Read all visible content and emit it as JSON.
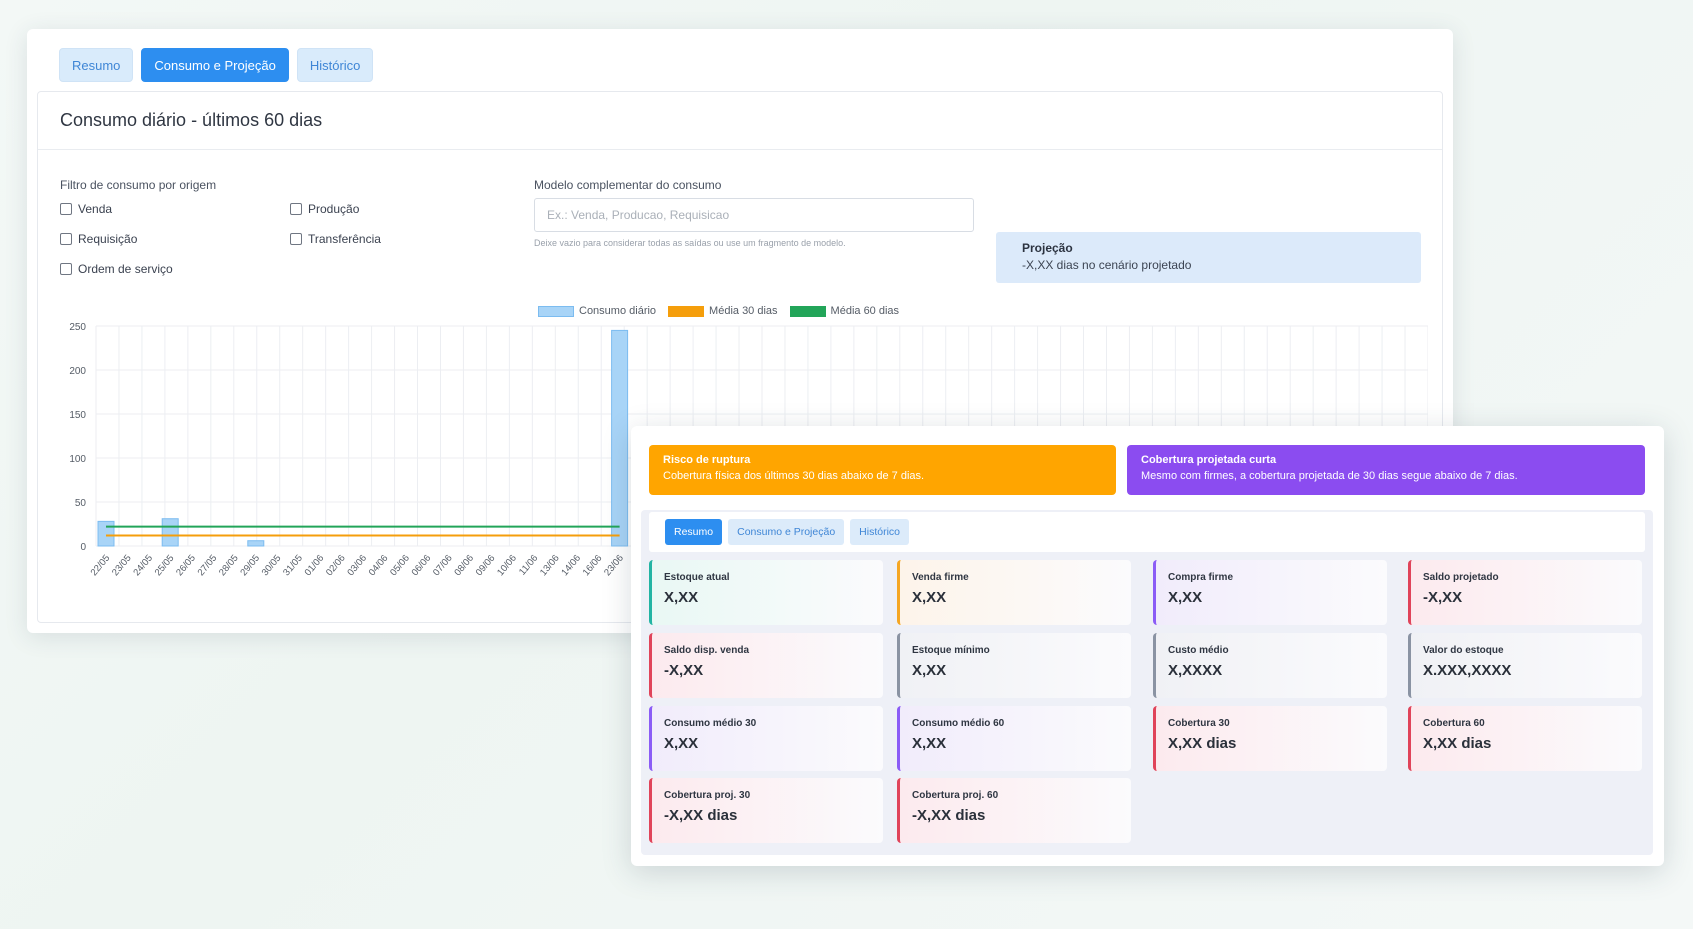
{
  "back": {
    "tabs": [
      "Resumo",
      "Consumo e Projeção",
      "Histórico"
    ],
    "active_tab": 1,
    "panel_title": "Consumo diário - últimos 60 dias",
    "filter_label": "Filtro de consumo por origem",
    "filters": [
      "Venda",
      "Produção",
      "Requisição",
      "Transferência",
      "Ordem de serviço"
    ],
    "model_label": "Modelo complementar do consumo",
    "model_placeholder": "Ex.: Venda, Producao, Requisicao",
    "model_hint": "Deixe vazio para considerar todas as saídas ou use um fragmento de modelo.",
    "projection_title": "Projeção",
    "projection_text": "-X,XX dias no cenário projetado"
  },
  "chart_data": {
    "type": "bar",
    "legend": [
      {
        "name": "Consumo diário",
        "color": "#a8d4f7"
      },
      {
        "name": "Média 30 dias",
        "color": "#f59e0b"
      },
      {
        "name": "Média 60 dias",
        "color": "#22a559"
      }
    ],
    "categories": [
      "22/05",
      "23/05",
      "24/05",
      "25/05",
      "26/05",
      "27/05",
      "28/05",
      "29/05",
      "30/05",
      "31/05",
      "01/06",
      "02/06",
      "03/06",
      "04/06",
      "05/06",
      "06/06",
      "07/06",
      "08/06",
      "09/06",
      "10/06",
      "11/06",
      "13/06",
      "14/06",
      "16/06",
      "23/06"
    ],
    "values": [
      28,
      0,
      0,
      31,
      0,
      0,
      0,
      6,
      0,
      0,
      0,
      0,
      0,
      0,
      0,
      0,
      0,
      0,
      0,
      0,
      0,
      0,
      0,
      0,
      245
    ],
    "avg30": 12,
    "avg60": 22,
    "yticks": [
      0,
      50,
      100,
      150,
      200,
      250
    ],
    "ylim": [
      0,
      250
    ]
  },
  "front": {
    "alerts": [
      {
        "title": "Risco de ruptura",
        "text": "Cobertura física dos últimos 30 dias abaixo de 7 dias.",
        "color": "#ffa500"
      },
      {
        "title": "Cobertura projetada curta",
        "text": "Mesmo com firmes, a cobertura projetada de 30 dias segue abaixo de 7 dias.",
        "color": "#8b4cf0"
      }
    ],
    "tabs": [
      "Resumo",
      "Consumo e Projeção",
      "Histórico"
    ],
    "active_tab": 0,
    "cards": [
      {
        "label": "Estoque atual",
        "value": "X,XX",
        "accent": "#23b4a3",
        "bg": "#e9f8f4"
      },
      {
        "label": "Venda firme",
        "value": "X,XX",
        "accent": "#f5a623",
        "bg": "#fdf4ea"
      },
      {
        "label": "Compra firme",
        "value": "X,XX",
        "accent": "#8b5cf6",
        "bg": "#f1ecfb"
      },
      {
        "label": "Saldo projetado",
        "value": "-X,XX",
        "accent": "#e0445a",
        "bg": "#fceaee"
      },
      {
        "label": "Saldo disp. venda",
        "value": "-X,XX",
        "accent": "#e0445a",
        "bg": "#fceaee"
      },
      {
        "label": "Estoque mínimo",
        "value": "X,XX",
        "accent": "#8a93a3",
        "bg": "#f0f1f5"
      },
      {
        "label": "Custo médio",
        "value": "X,XXXX",
        "accent": "#8a93a3",
        "bg": "#f0f1f5"
      },
      {
        "label": "Valor do estoque",
        "value": "X.XXX,XXXX",
        "accent": "#8a93a3",
        "bg": "#f0f1f5"
      },
      {
        "label": "Consumo médio 30",
        "value": "X,XX",
        "accent": "#8b5cf6",
        "bg": "#f1ecfb"
      },
      {
        "label": "Consumo médio 60",
        "value": "X,XX",
        "accent": "#8b5cf6",
        "bg": "#f1ecfb"
      },
      {
        "label": "Cobertura 30",
        "value": "X,XX dias",
        "accent": "#e0445a",
        "bg": "#fceaee"
      },
      {
        "label": "Cobertura 60",
        "value": "X,XX dias",
        "accent": "#e0445a",
        "bg": "#fceaee"
      },
      {
        "label": "Cobertura proj. 30",
        "value": "-X,XX dias",
        "accent": "#e0445a",
        "bg": "#fceaee"
      },
      {
        "label": "Cobertura proj. 60",
        "value": "-X,XX dias",
        "accent": "#e0445a",
        "bg": "#fceaee"
      }
    ]
  }
}
